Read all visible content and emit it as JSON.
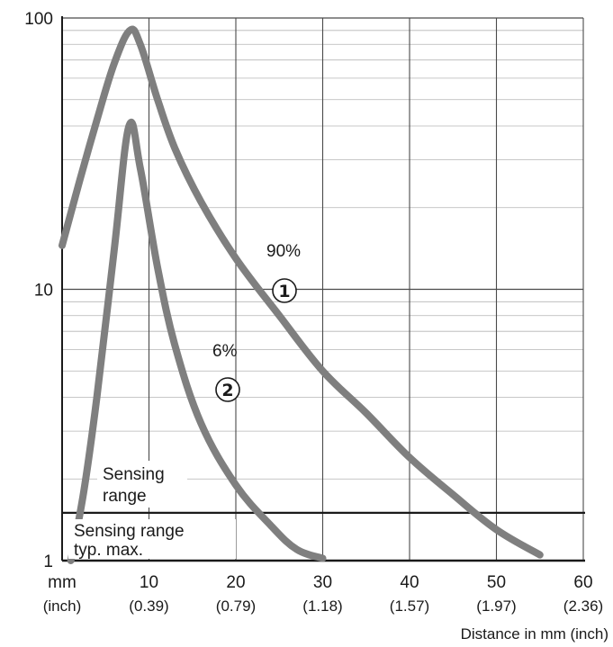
{
  "chart_data": {
    "type": "line",
    "y_scale": "log",
    "ylim": [
      1,
      100
    ],
    "xlim": [
      0,
      60
    ],
    "y_ticks": [
      "1",
      "10",
      "100"
    ],
    "x_ticks": [
      {
        "mm": "mm",
        "inch": "(inch)"
      },
      {
        "mm": "10",
        "inch": "(0.39)"
      },
      {
        "mm": "20",
        "inch": "(0.79)"
      },
      {
        "mm": "30",
        "inch": "(1.18)"
      },
      {
        "mm": "40",
        "inch": "(1.57)"
      },
      {
        "mm": "50",
        "inch": "(1.97)"
      },
      {
        "mm": "60",
        "inch": "(2.36)"
      }
    ],
    "xlabel": "Distance in mm (inch)",
    "grid": true,
    "series": [
      {
        "name": "90%",
        "marker": "①",
        "color": "#7f7f7f",
        "points": [
          [
            0,
            14.5
          ],
          [
            2,
            25
          ],
          [
            4,
            42
          ],
          [
            6,
            68
          ],
          [
            7.8,
            90
          ],
          [
            9,
            80
          ],
          [
            11,
            50
          ],
          [
            13,
            33
          ],
          [
            16,
            21
          ],
          [
            20,
            13
          ],
          [
            25,
            8
          ],
          [
            30,
            5
          ],
          [
            35,
            3.5
          ],
          [
            40,
            2.4
          ],
          [
            45,
            1.75
          ],
          [
            50,
            1.3
          ],
          [
            55,
            1.05
          ]
        ]
      },
      {
        "name": "6%",
        "marker": "②",
        "color": "#7f7f7f",
        "points": [
          [
            1,
            1
          ],
          [
            2.5,
            1.8
          ],
          [
            4,
            4
          ],
          [
            6,
            14
          ],
          [
            7.7,
            40
          ],
          [
            9,
            28
          ],
          [
            11,
            12
          ],
          [
            13,
            6.2
          ],
          [
            16,
            3.2
          ],
          [
            20,
            1.9
          ],
          [
            24,
            1.35
          ],
          [
            27,
            1.1
          ],
          [
            30,
            1.02
          ]
        ]
      }
    ],
    "reference_lines": [
      {
        "y": 1.5,
        "label_above": "Sensing range",
        "label_below": "Sensing range typ. max."
      }
    ],
    "annotations": {
      "series1_label": "90%",
      "series1_marker": "①",
      "series2_label": "6%",
      "series2_marker": "②",
      "range_label_line1": "Sensing",
      "range_label_line2": "range",
      "max_label_line1": "Sensing range",
      "max_label_line2": "typ. max."
    }
  }
}
